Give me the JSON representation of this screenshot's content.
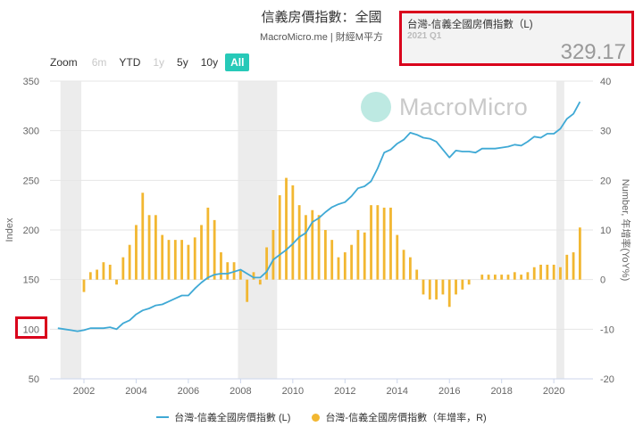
{
  "header": {
    "title": "信義房價指數：全國",
    "subtitle": "MacroMicro.me | 財經M平方"
  },
  "zoom": {
    "label": "Zoom",
    "buttons": [
      {
        "label": "6m",
        "state": "disabled"
      },
      {
        "label": "YTD",
        "state": "normal"
      },
      {
        "label": "1y",
        "state": "disabled"
      },
      {
        "label": "5y",
        "state": "normal"
      },
      {
        "label": "10y",
        "state": "normal"
      },
      {
        "label": "All",
        "state": "active"
      }
    ]
  },
  "tooltip": {
    "series": "台灣-信義全國房價指數（L)",
    "date": "2021 Q1",
    "value": "329.17"
  },
  "watermark": {
    "text": "MacroMicro",
    "icon": "macromicro-logo-icon"
  },
  "legend": [
    {
      "label": "台灣-信義全國房價指數 (L)",
      "icon": "line-series-icon"
    },
    {
      "label": "台灣-信義全國房價指數（年增率，R)",
      "icon": "dot-series-icon"
    }
  ],
  "colors": {
    "line": "#3fa9d5",
    "bar": "#f2b731",
    "active_button": "#27c9b8",
    "recession_band": "#ececec",
    "highlight": "#d9001b"
  },
  "chart_data": {
    "type": "line",
    "xlabel": "",
    "ylabel": "Index",
    "ylabel_right": "Number, 年增率(YoY%)",
    "ylim": [
      50,
      350
    ],
    "ylim_right": [
      -20,
      40
    ],
    "yticks_left": [
      "50",
      "100",
      "150",
      "200",
      "250",
      "300",
      "350"
    ],
    "yticks_right": [
      "-20",
      "-10",
      "0",
      "10",
      "20",
      "30",
      "40"
    ],
    "xticks": [
      "2002",
      "2004",
      "2006",
      "2008",
      "2010",
      "2012",
      "2014",
      "2016",
      "2018",
      "2020"
    ],
    "xlim": [
      2000.7,
      2021.5
    ],
    "recession_bands": [
      [
        2001.1,
        2001.9
      ],
      [
        2007.9,
        2009.4
      ],
      [
        2020.1,
        2020.4
      ]
    ],
    "grid": true,
    "legend_position": "bottom",
    "series": [
      {
        "name": "台灣-信義全國房價指數 (L)",
        "type": "line",
        "axis": "left",
        "x": [
          2001.0,
          2001.25,
          2001.5,
          2001.75,
          2002.0,
          2002.25,
          2002.5,
          2002.75,
          2003.0,
          2003.25,
          2003.5,
          2003.75,
          2004.0,
          2004.25,
          2004.5,
          2004.75,
          2005.0,
          2005.25,
          2005.5,
          2005.75,
          2006.0,
          2006.25,
          2006.5,
          2006.75,
          2007.0,
          2007.25,
          2007.5,
          2007.75,
          2008.0,
          2008.25,
          2008.5,
          2008.75,
          2009.0,
          2009.25,
          2009.5,
          2009.75,
          2010.0,
          2010.25,
          2010.5,
          2010.75,
          2011.0,
          2011.25,
          2011.5,
          2011.75,
          2012.0,
          2012.25,
          2012.5,
          2012.75,
          2013.0,
          2013.25,
          2013.5,
          2013.75,
          2014.0,
          2014.25,
          2014.5,
          2014.75,
          2015.0,
          2015.25,
          2015.5,
          2015.75,
          2016.0,
          2016.25,
          2016.5,
          2016.75,
          2017.0,
          2017.25,
          2017.5,
          2017.75,
          2018.0,
          2018.25,
          2018.5,
          2018.75,
          2019.0,
          2019.25,
          2019.5,
          2019.75,
          2020.0,
          2020.25,
          2020.5,
          2020.75,
          2021.0
        ],
        "values": [
          101,
          100,
          99,
          98,
          99,
          101,
          101,
          101,
          102,
          100,
          106,
          109,
          115,
          119,
          121,
          124,
          125,
          128,
          131,
          134,
          134,
          141,
          147,
          152,
          155,
          156,
          156,
          158,
          160,
          156,
          152,
          152,
          158,
          170,
          175,
          180,
          186,
          193,
          197,
          208,
          212,
          218,
          223,
          226,
          228,
          234,
          242,
          244,
          249,
          262,
          278,
          281,
          287,
          291,
          298,
          296,
          293,
          292,
          289,
          281,
          273,
          280,
          279,
          279,
          278,
          282,
          282,
          282,
          283,
          284,
          286,
          285,
          289,
          294,
          293,
          297,
          297,
          302,
          312,
          317,
          329.17
        ]
      },
      {
        "name": "台灣-信義全國房價指數（年增率，R)",
        "type": "bar",
        "axis": "right",
        "x": [
          2001.0,
          2001.25,
          2001.5,
          2001.75,
          2002.0,
          2002.25,
          2002.5,
          2002.75,
          2003.0,
          2003.25,
          2003.5,
          2003.75,
          2004.0,
          2004.25,
          2004.5,
          2004.75,
          2005.0,
          2005.25,
          2005.5,
          2005.75,
          2006.0,
          2006.25,
          2006.5,
          2006.75,
          2007.0,
          2007.25,
          2007.5,
          2007.75,
          2008.0,
          2008.25,
          2008.5,
          2008.75,
          2009.0,
          2009.25,
          2009.5,
          2009.75,
          2010.0,
          2010.25,
          2010.5,
          2010.75,
          2011.0,
          2011.25,
          2011.5,
          2011.75,
          2012.0,
          2012.25,
          2012.5,
          2012.75,
          2013.0,
          2013.25,
          2013.5,
          2013.75,
          2014.0,
          2014.25,
          2014.5,
          2014.75,
          2015.0,
          2015.25,
          2015.5,
          2015.75,
          2016.0,
          2016.25,
          2016.5,
          2016.75,
          2017.0,
          2017.25,
          2017.5,
          2017.75,
          2018.0,
          2018.25,
          2018.5,
          2018.75,
          2019.0,
          2019.25,
          2019.5,
          2019.75,
          2020.0,
          2020.25,
          2020.5,
          2020.75,
          2021.0
        ],
        "values": [
          0,
          0,
          0,
          0,
          -2.5,
          1.5,
          2,
          3.5,
          3,
          -1,
          4.5,
          7,
          11,
          17.5,
          13,
          13,
          9,
          8,
          8,
          8,
          7,
          8.5,
          11,
          14.5,
          12,
          5.5,
          3.5,
          3.5,
          2,
          -4.5,
          1.5,
          -1,
          6.5,
          10,
          17,
          20.5,
          19,
          15,
          13,
          14,
          13,
          10,
          8,
          4.5,
          5.5,
          7,
          10,
          9.5,
          15,
          15,
          14.5,
          14.5,
          9,
          6,
          4.5,
          2,
          -3,
          -4,
          -4,
          -3,
          -5.5,
          -3,
          -2,
          -1,
          0,
          1,
          1,
          1,
          1,
          1,
          1.5,
          1,
          1.5,
          2.5,
          3,
          3,
          3,
          2.5,
          5,
          5.5,
          10.5
        ]
      }
    ]
  }
}
